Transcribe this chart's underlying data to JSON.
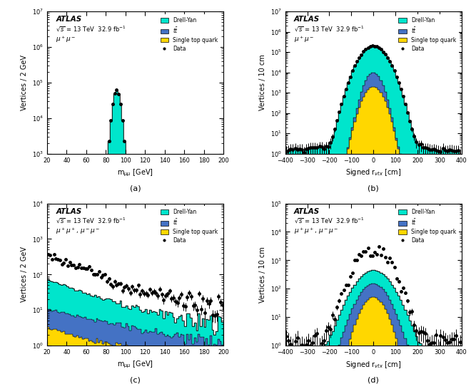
{
  "fig_width": 6.6,
  "fig_height": 5.39,
  "dpi": 100,
  "colors": {
    "drell_yan": "#00E5CC",
    "ttbar": "#4472C4",
    "single_top": "#FFD700",
    "data_marker": "black"
  },
  "panel_a": {
    "xlabel": "m$_{\\mu\\mu}$ [GeV]",
    "ylabel": "Vertices / 2 GeV",
    "xlim": [
      20,
      200
    ],
    "ylim_log": [
      3,
      7
    ],
    "label": "\\mu^+\\mu^-",
    "atlas_label": "ATLAS",
    "energy_label": "\\sqrt{s} = 13 TeV  32.9 fb$^{-1}$",
    "sublabel": "(a)"
  },
  "panel_b": {
    "xlabel": "Signed r$_{vtx}$ [cm]",
    "ylabel": "Vertices / 10 cm",
    "xlim": [
      -400,
      400
    ],
    "ylim_log": [
      0,
      7
    ],
    "label": "\\mu^+\\mu^-",
    "atlas_label": "ATLAS",
    "energy_label": "\\sqrt{s} = 13 TeV  32.9 fb$^{-1}$",
    "sublabel": "(b)"
  },
  "panel_c": {
    "xlabel": "m$_{\\mu\\mu}$ [GeV]",
    "ylabel": "Vertices / 2 GeV",
    "xlim": [
      20,
      200
    ],
    "ylim_log": [
      0,
      4
    ],
    "label": "\\mu^+\\mu^+, \\mu^-\\mu^-",
    "atlas_label": "ATLAS",
    "energy_label": "\\sqrt{s} = 13 TeV  32.9 fb$^{-1}$",
    "sublabel": "(c)"
  },
  "panel_d": {
    "xlabel": "Signed r$_{vtx}$ [cm]",
    "ylabel": "Vertices / 10 cm",
    "xlim": [
      -400,
      400
    ],
    "ylim_log": [
      0,
      5
    ],
    "label": "\\mu^+\\mu^+, \\mu^-\\mu^-",
    "atlas_label": "ATLAS",
    "energy_label": "\\sqrt{s} = 13 TeV  32.9 fb$^{-1}$",
    "sublabel": "(d)"
  }
}
